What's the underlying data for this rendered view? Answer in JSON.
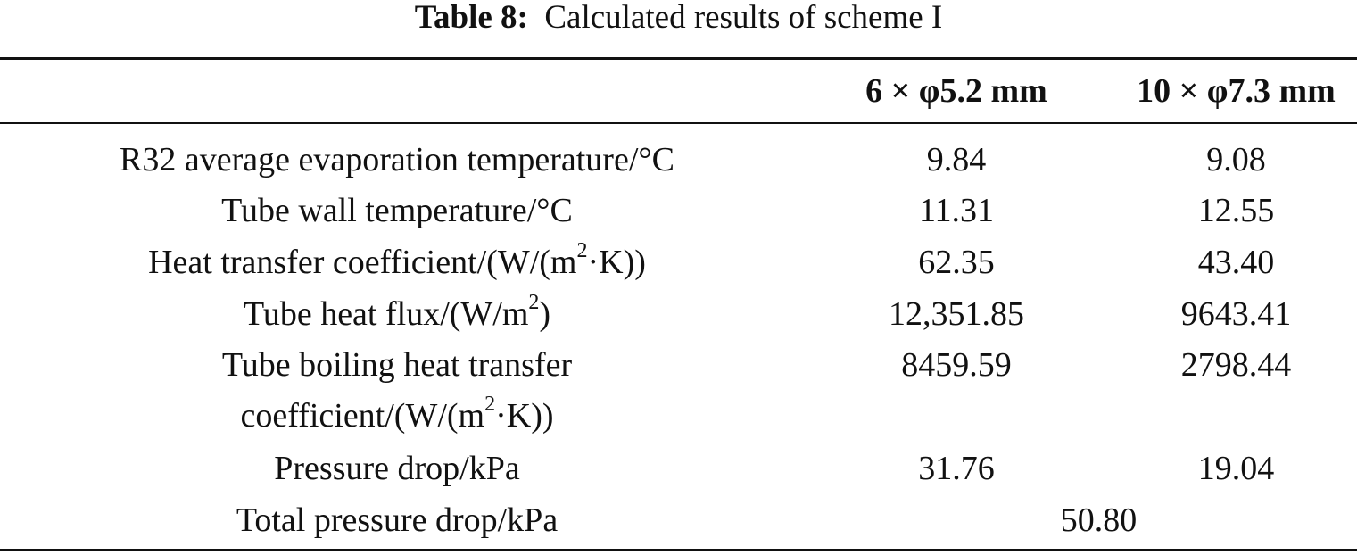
{
  "caption": {
    "label": "Table 8:",
    "text": "Calculated results of scheme I"
  },
  "table": {
    "headers": [
      "",
      "6 × φ5.2 mm",
      "10 × φ7.3 mm"
    ],
    "rows": [
      {
        "label": "R32 average evaporation temperature/°C",
        "col_a": "9.84",
        "col_b": "9.08"
      },
      {
        "label": "Tube wall temperature/°C",
        "col_a": "11.31",
        "col_b": "12.55"
      },
      {
        "label_pre": "Heat transfer coefficient/(W/(m",
        "label_sup": "2",
        "label_post": "·K))",
        "col_a": "62.35",
        "col_b": "43.40"
      },
      {
        "label_pre": "Tube heat flux/(W/m",
        "label_sup": "2",
        "label_post": ")",
        "col_a": "12,351.85",
        "col_b": "9643.41"
      },
      {
        "label_line1": "Tube boiling heat transfer",
        "label_line2_pre": "coefficient/(W/(m",
        "label_sup": "2",
        "label_line2_post": "·K))",
        "col_a": "8459.59",
        "col_b": "2798.44"
      },
      {
        "label": "Pressure drop/kPa",
        "col_a": "31.76",
        "col_b": "19.04"
      },
      {
        "label": "Total pressure drop/kPa",
        "merged": "50.80"
      }
    ]
  }
}
